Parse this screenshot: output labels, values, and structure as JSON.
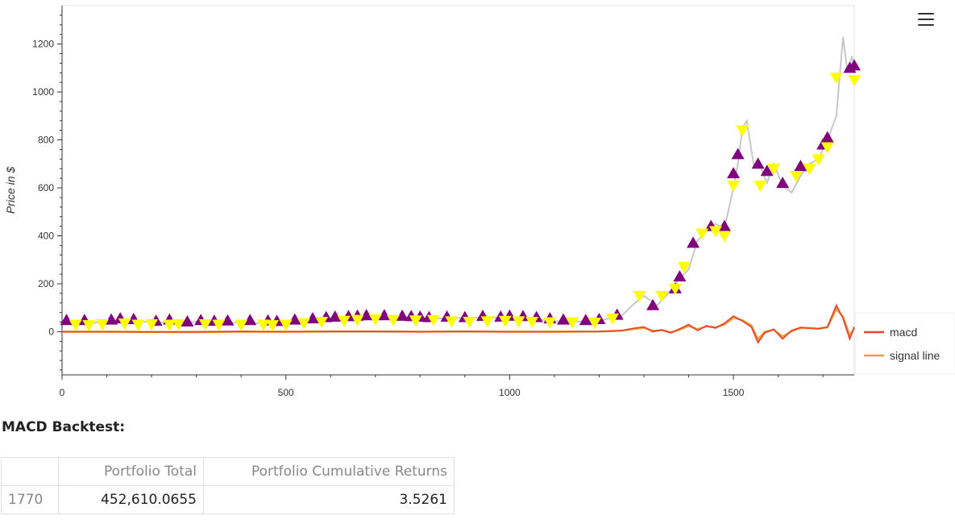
{
  "chart_data": {
    "type": "line",
    "ylabel": "Price in $",
    "xlabel": "",
    "xlim": [
      0,
      1770
    ],
    "ylim": [
      -180,
      1360
    ],
    "x_ticks": [
      0,
      500,
      1000,
      1500
    ],
    "y_ticks": [
      0,
      200,
      400,
      600,
      800,
      1000,
      1200
    ],
    "colors": {
      "price": "#c8c8c8",
      "buy_marker": "#800080",
      "sell_marker": "#ffff00",
      "macd": "#e8472f",
      "signal": "#e8a33a"
    },
    "legend": {
      "placement": "right",
      "entries": [
        "macd",
        "signal line"
      ]
    },
    "price_series": [
      [
        0,
        38
      ],
      [
        50,
        36
      ],
      [
        100,
        40
      ],
      [
        150,
        44
      ],
      [
        200,
        40
      ],
      [
        250,
        38
      ],
      [
        300,
        41
      ],
      [
        350,
        39
      ],
      [
        400,
        37
      ],
      [
        450,
        36
      ],
      [
        500,
        38
      ],
      [
        550,
        48
      ],
      [
        600,
        56
      ],
      [
        650,
        62
      ],
      [
        700,
        65
      ],
      [
        750,
        60
      ],
      [
        800,
        58
      ],
      [
        850,
        55
      ],
      [
        900,
        58
      ],
      [
        950,
        60
      ],
      [
        1000,
        58
      ],
      [
        1050,
        54
      ],
      [
        1100,
        44
      ],
      [
        1150,
        42
      ],
      [
        1200,
        46
      ],
      [
        1250,
        66
      ],
      [
        1280,
        120
      ],
      [
        1300,
        150
      ],
      [
        1330,
        110
      ],
      [
        1350,
        150
      ],
      [
        1380,
        220
      ],
      [
        1400,
        260
      ],
      [
        1420,
        380
      ],
      [
        1440,
        420
      ],
      [
        1460,
        450
      ],
      [
        1480,
        430
      ],
      [
        1500,
        600
      ],
      [
        1510,
        700
      ],
      [
        1520,
        850
      ],
      [
        1530,
        880
      ],
      [
        1545,
        700
      ],
      [
        1560,
        690
      ],
      [
        1575,
        620
      ],
      [
        1590,
        700
      ],
      [
        1610,
        610
      ],
      [
        1630,
        580
      ],
      [
        1650,
        650
      ],
      [
        1670,
        700
      ],
      [
        1690,
        720
      ],
      [
        1710,
        800
      ],
      [
        1730,
        900
      ],
      [
        1745,
        1230
      ],
      [
        1755,
        1080
      ],
      [
        1765,
        1150
      ],
      [
        1770,
        1100
      ]
    ],
    "macd_series": [
      [
        0,
        0
      ],
      [
        100,
        0
      ],
      [
        200,
        -1
      ],
      [
        300,
        0
      ],
      [
        400,
        1
      ],
      [
        500,
        0
      ],
      [
        600,
        1
      ],
      [
        700,
        1
      ],
      [
        800,
        0
      ],
      [
        900,
        1
      ],
      [
        1000,
        0
      ],
      [
        1100,
        0
      ],
      [
        1200,
        1
      ],
      [
        1250,
        5
      ],
      [
        1280,
        15
      ],
      [
        1300,
        20
      ],
      [
        1320,
        0
      ],
      [
        1340,
        8
      ],
      [
        1360,
        -5
      ],
      [
        1380,
        12
      ],
      [
        1400,
        30
      ],
      [
        1420,
        5
      ],
      [
        1440,
        25
      ],
      [
        1460,
        15
      ],
      [
        1480,
        35
      ],
      [
        1500,
        65
      ],
      [
        1520,
        45
      ],
      [
        1540,
        20
      ],
      [
        1555,
        -45
      ],
      [
        1570,
        -5
      ],
      [
        1590,
        10
      ],
      [
        1610,
        -30
      ],
      [
        1630,
        5
      ],
      [
        1650,
        18
      ],
      [
        1670,
        15
      ],
      [
        1690,
        12
      ],
      [
        1710,
        20
      ],
      [
        1730,
        110
      ],
      [
        1745,
        55
      ],
      [
        1760,
        -30
      ],
      [
        1770,
        20
      ]
    ],
    "signal_series": [
      [
        0,
        0
      ],
      [
        100,
        0
      ],
      [
        200,
        -1
      ],
      [
        300,
        -2
      ],
      [
        400,
        0
      ],
      [
        500,
        0
      ],
      [
        600,
        1
      ],
      [
        700,
        1
      ],
      [
        800,
        0
      ],
      [
        900,
        1
      ],
      [
        1000,
        0
      ],
      [
        1100,
        0
      ],
      [
        1200,
        1
      ],
      [
        1250,
        4
      ],
      [
        1280,
        12
      ],
      [
        1300,
        16
      ],
      [
        1320,
        4
      ],
      [
        1340,
        6
      ],
      [
        1360,
        -2
      ],
      [
        1380,
        8
      ],
      [
        1400,
        24
      ],
      [
        1420,
        10
      ],
      [
        1440,
        22
      ],
      [
        1460,
        18
      ],
      [
        1480,
        30
      ],
      [
        1500,
        58
      ],
      [
        1520,
        48
      ],
      [
        1540,
        26
      ],
      [
        1555,
        -32
      ],
      [
        1570,
        0
      ],
      [
        1590,
        8
      ],
      [
        1610,
        -20
      ],
      [
        1630,
        2
      ],
      [
        1650,
        15
      ],
      [
        1670,
        15
      ],
      [
        1690,
        13
      ],
      [
        1710,
        18
      ],
      [
        1730,
        95
      ],
      [
        1745,
        62
      ],
      [
        1760,
        -15
      ],
      [
        1770,
        15
      ]
    ],
    "buy_signals": [
      [
        10,
        48
      ],
      [
        50,
        48
      ],
      [
        110,
        50
      ],
      [
        130,
        55
      ],
      [
        160,
        52
      ],
      [
        210,
        45
      ],
      [
        240,
        50
      ],
      [
        280,
        42
      ],
      [
        310,
        48
      ],
      [
        340,
        45
      ],
      [
        370,
        46
      ],
      [
        420,
        48
      ],
      [
        460,
        46
      ],
      [
        480,
        44
      ],
      [
        520,
        50
      ],
      [
        560,
        55
      ],
      [
        590,
        60
      ],
      [
        610,
        62
      ],
      [
        640,
        64
      ],
      [
        660,
        66
      ],
      [
        680,
        68
      ],
      [
        720,
        68
      ],
      [
        760,
        66
      ],
      [
        780,
        64
      ],
      [
        800,
        62
      ],
      [
        820,
        60
      ],
      [
        860,
        62
      ],
      [
        900,
        60
      ],
      [
        940,
        65
      ],
      [
        980,
        62
      ],
      [
        1000,
        66
      ],
      [
        1030,
        64
      ],
      [
        1060,
        60
      ],
      [
        1090,
        55
      ],
      [
        1120,
        50
      ],
      [
        1170,
        48
      ],
      [
        1200,
        52
      ],
      [
        1240,
        70
      ],
      [
        1320,
        110
      ],
      [
        1370,
        180
      ],
      [
        1380,
        230
      ],
      [
        1410,
        370
      ],
      [
        1450,
        440
      ],
      [
        1480,
        440
      ],
      [
        1500,
        660
      ],
      [
        1510,
        740
      ],
      [
        1555,
        700
      ],
      [
        1575,
        670
      ],
      [
        1610,
        620
      ],
      [
        1650,
        690
      ],
      [
        1700,
        780
      ],
      [
        1710,
        810
      ],
      [
        1760,
        1100
      ],
      [
        1770,
        1110
      ]
    ],
    "sell_signals": [
      [
        30,
        30
      ],
      [
        60,
        28
      ],
      [
        90,
        32
      ],
      [
        140,
        35
      ],
      [
        170,
        30
      ],
      [
        200,
        32
      ],
      [
        240,
        30
      ],
      [
        260,
        32
      ],
      [
        320,
        32
      ],
      [
        350,
        30
      ],
      [
        400,
        30
      ],
      [
        450,
        30
      ],
      [
        470,
        28
      ],
      [
        500,
        30
      ],
      [
        540,
        36
      ],
      [
        580,
        42
      ],
      [
        630,
        46
      ],
      [
        660,
        50
      ],
      [
        700,
        52
      ],
      [
        740,
        50
      ],
      [
        790,
        48
      ],
      [
        830,
        50
      ],
      [
        870,
        44
      ],
      [
        910,
        42
      ],
      [
        950,
        44
      ],
      [
        990,
        46
      ],
      [
        1020,
        44
      ],
      [
        1050,
        42
      ],
      [
        1090,
        40
      ],
      [
        1140,
        40
      ],
      [
        1190,
        38
      ],
      [
        1230,
        56
      ],
      [
        1290,
        150
      ],
      [
        1340,
        150
      ],
      [
        1370,
        180
      ],
      [
        1390,
        270
      ],
      [
        1430,
        410
      ],
      [
        1460,
        420
      ],
      [
        1480,
        400
      ],
      [
        1500,
        610
      ],
      [
        1520,
        840
      ],
      [
        1560,
        610
      ],
      [
        1590,
        680
      ],
      [
        1640,
        650
      ],
      [
        1670,
        680
      ],
      [
        1690,
        720
      ],
      [
        1710,
        770
      ],
      [
        1730,
        1060
      ],
      [
        1770,
        1050
      ]
    ]
  },
  "page": {
    "section_title": "MACD Backtest:",
    "table": {
      "headers": [
        "",
        "Portfolio Total",
        "Portfolio Cumulative Returns"
      ],
      "rows": [
        [
          "1770",
          "452,610.0655",
          "3.5261"
        ]
      ]
    }
  }
}
